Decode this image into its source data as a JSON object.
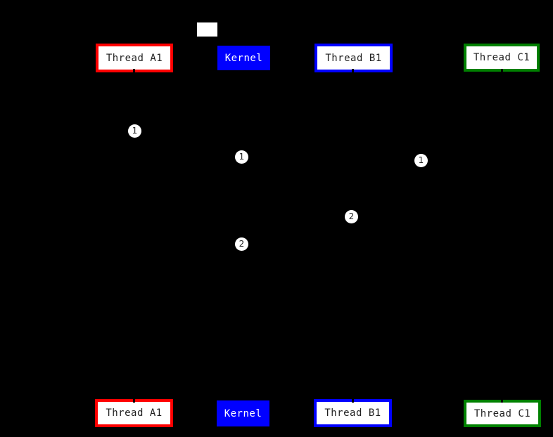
{
  "diagram": {
    "type": "sequence-diagram",
    "background_color": "#000000",
    "colors": {
      "thread_a1_border": "#ff0000",
      "thread_b1_border": "#0000ff",
      "thread_c1_border": "#008000",
      "kernel_fill": "#0000ff",
      "participant_fill": "#ffffff",
      "participant_text": "#1f1f1f",
      "kernel_text": "#ffffff",
      "marker_fill": "#ffffff",
      "marker_text": "#222222"
    },
    "participants": [
      {
        "label": "Thread A1"
      },
      {
        "label": "Kernel"
      },
      {
        "label": "Thread B1"
      },
      {
        "label": "Thread C1"
      }
    ],
    "note_box": {
      "text": ""
    },
    "markers": [
      {
        "label": "1"
      },
      {
        "label": "1"
      },
      {
        "label": "1"
      },
      {
        "label": "2"
      },
      {
        "label": "2"
      }
    ]
  }
}
